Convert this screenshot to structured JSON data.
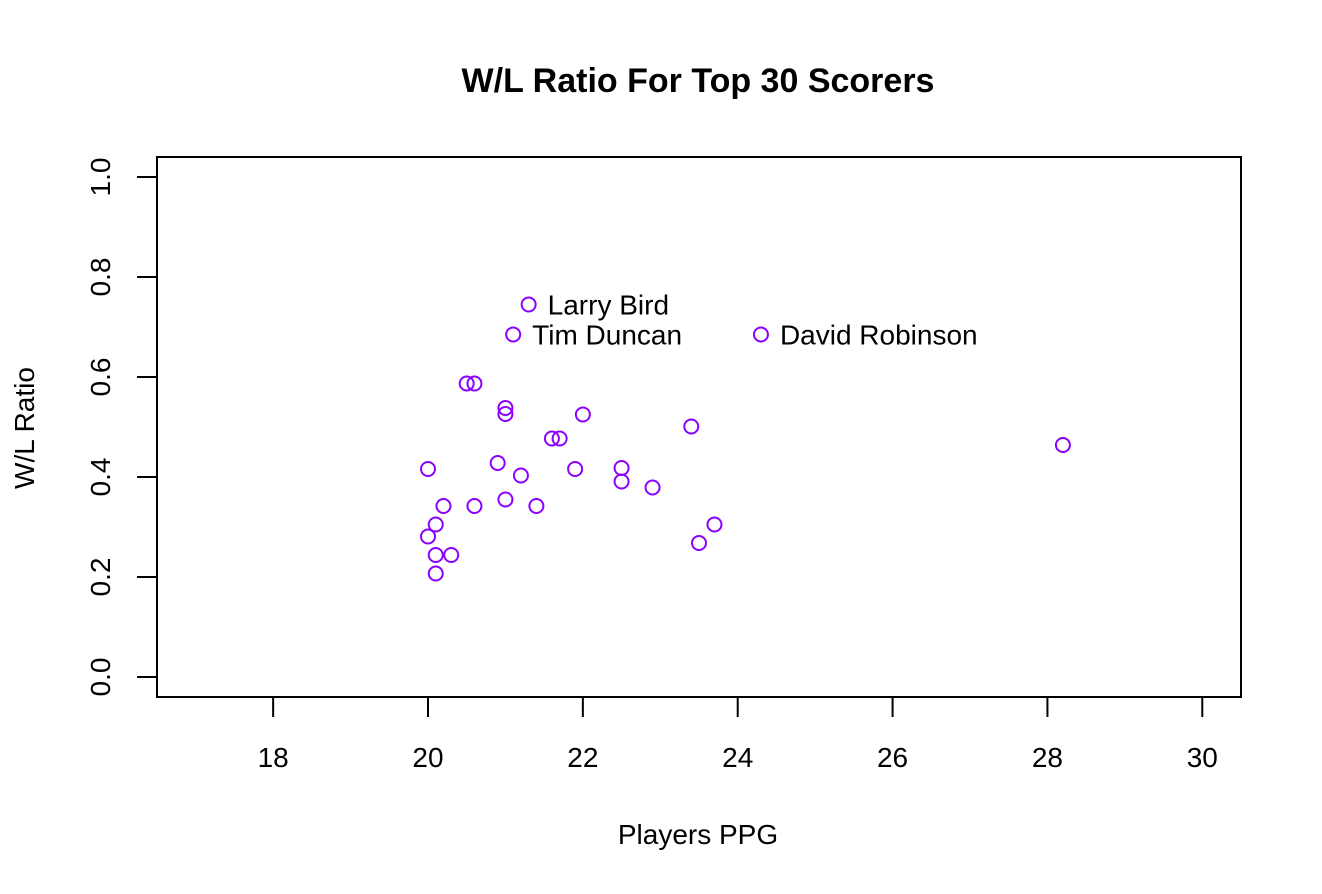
{
  "chart_data": {
    "type": "scatter",
    "title": "W/L Ratio For Top 30 Scorers",
    "xlabel": "Players PPG",
    "ylabel": "W/L Ratio",
    "xlim": [
      16.5,
      30.5
    ],
    "ylim": [
      -0.04,
      1.04
    ],
    "xticks": [
      "18",
      "20",
      "22",
      "24",
      "26",
      "28",
      "30"
    ],
    "yticks": [
      "0.0",
      "0.2",
      "0.4",
      "0.6",
      "0.8",
      "1.0"
    ],
    "grid": false,
    "point_color": "#8B00FF",
    "points": [
      {
        "x": 21.3,
        "y": 0.745,
        "label": "Larry Bird"
      },
      {
        "x": 21.1,
        "y": 0.685,
        "label": "Tim Duncan"
      },
      {
        "x": 24.3,
        "y": 0.685,
        "label": "David Robinson"
      },
      {
        "x": 20.5,
        "y": 0.587
      },
      {
        "x": 20.6,
        "y": 0.587
      },
      {
        "x": 21.0,
        "y": 0.538
      },
      {
        "x": 21.0,
        "y": 0.526
      },
      {
        "x": 22.0,
        "y": 0.525
      },
      {
        "x": 23.4,
        "y": 0.501
      },
      {
        "x": 21.6,
        "y": 0.477
      },
      {
        "x": 21.7,
        "y": 0.477
      },
      {
        "x": 28.2,
        "y": 0.464
      },
      {
        "x": 20.9,
        "y": 0.428
      },
      {
        "x": 20.0,
        "y": 0.416
      },
      {
        "x": 21.9,
        "y": 0.416
      },
      {
        "x": 22.5,
        "y": 0.418
      },
      {
        "x": 21.2,
        "y": 0.403
      },
      {
        "x": 22.5,
        "y": 0.391
      },
      {
        "x": 22.9,
        "y": 0.379
      },
      {
        "x": 21.0,
        "y": 0.355
      },
      {
        "x": 20.2,
        "y": 0.342
      },
      {
        "x": 20.6,
        "y": 0.342
      },
      {
        "x": 21.4,
        "y": 0.342
      },
      {
        "x": 20.1,
        "y": 0.305
      },
      {
        "x": 23.7,
        "y": 0.305
      },
      {
        "x": 20.0,
        "y": 0.281
      },
      {
        "x": 23.5,
        "y": 0.268
      },
      {
        "x": 20.1,
        "y": 0.244
      },
      {
        "x": 20.3,
        "y": 0.244
      },
      {
        "x": 20.1,
        "y": 0.207
      }
    ]
  }
}
